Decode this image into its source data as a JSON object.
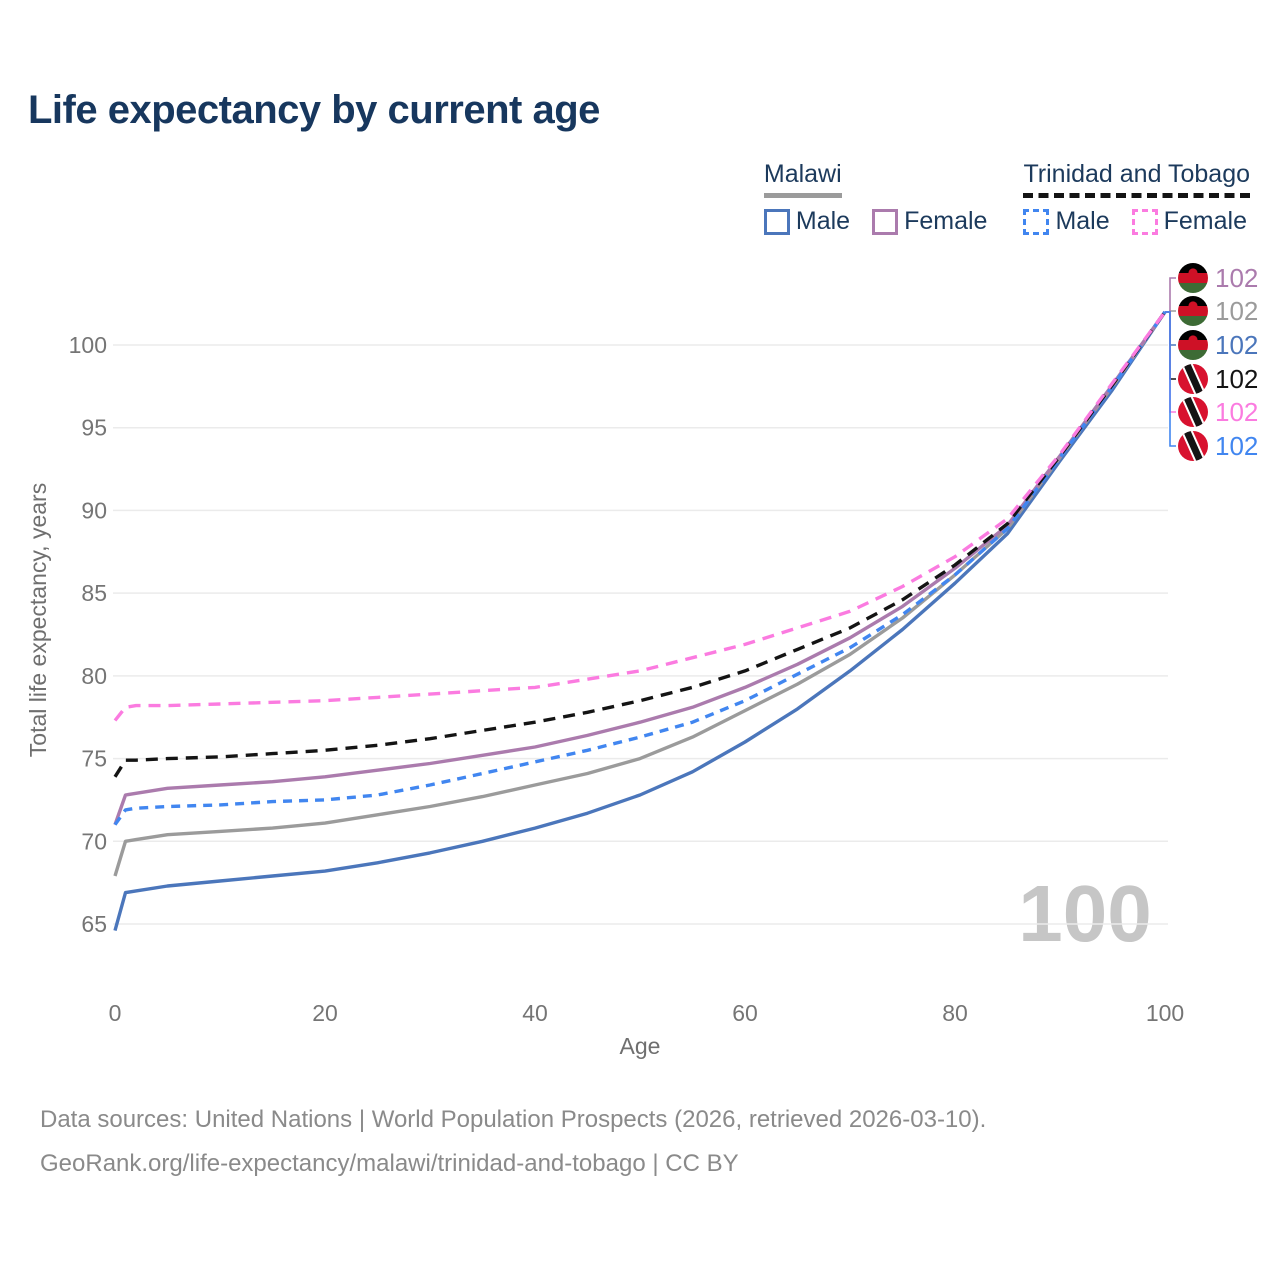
{
  "header": {
    "title": "Life expectancy by current age"
  },
  "legend": {
    "malawi": {
      "title": "Malawi",
      "male": "Male",
      "female": "Female"
    },
    "trinidad": {
      "title": "Trinidad and Tobago",
      "male": "Male",
      "female": "Female"
    }
  },
  "footer": {
    "line1": "Data sources: United Nations | World Population Prospects (2026, retrieved 2026-03-10).",
    "line2": "GeoRank.org/life-expectancy/malawi/trinidad-and-tobago | CC BY"
  },
  "chart_data": {
    "type": "line",
    "title": "Life expectancy by current age",
    "xlabel": "Age",
    "ylabel": "Total life expectancy, years",
    "x_ticks": [
      0,
      20,
      40,
      60,
      80,
      100
    ],
    "y_ticks": [
      65,
      70,
      75,
      80,
      85,
      90,
      95,
      100
    ],
    "xlim": [
      0,
      100
    ],
    "ylim": [
      63.5,
      103
    ],
    "grid": "horizontal",
    "grid_color": "#ebebeb",
    "watermark_age": "100",
    "watermark_color": "#c6c6c6",
    "text_navy": "#1c3a5c",
    "series": [
      {
        "key": "malawi-female",
        "name": "Malawi Female",
        "country": "Malawi",
        "sex": "Female",
        "color": "#ab7bad",
        "dashed": false,
        "flag": "malawi",
        "end_label": "102",
        "points": [
          [
            0,
            71.0
          ],
          [
            1,
            72.8
          ],
          [
            2,
            72.9
          ],
          [
            5,
            73.2
          ],
          [
            10,
            73.4
          ],
          [
            15,
            73.6
          ],
          [
            20,
            73.9
          ],
          [
            25,
            74.3
          ],
          [
            30,
            74.7
          ],
          [
            35,
            75.2
          ],
          [
            40,
            75.7
          ],
          [
            45,
            76.4
          ],
          [
            50,
            77.2
          ],
          [
            55,
            78.1
          ],
          [
            60,
            79.3
          ],
          [
            65,
            80.7
          ],
          [
            70,
            82.3
          ],
          [
            75,
            84.2
          ],
          [
            80,
            86.5
          ],
          [
            85,
            89.1
          ],
          [
            90,
            93.3
          ],
          [
            95,
            97.6
          ],
          [
            100,
            102
          ]
        ]
      },
      {
        "key": "malawi",
        "name": "Malawi",
        "country": "Malawi",
        "sex": "Both",
        "color": "#9b9b9b",
        "dashed": false,
        "flag": "malawi",
        "end_label": "102",
        "points": [
          [
            0,
            67.9
          ],
          [
            1,
            70.0
          ],
          [
            2,
            70.1
          ],
          [
            5,
            70.4
          ],
          [
            10,
            70.6
          ],
          [
            15,
            70.8
          ],
          [
            20,
            71.1
          ],
          [
            25,
            71.6
          ],
          [
            30,
            72.1
          ],
          [
            35,
            72.7
          ],
          [
            40,
            73.4
          ],
          [
            45,
            74.1
          ],
          [
            50,
            75.0
          ],
          [
            55,
            76.3
          ],
          [
            60,
            77.9
          ],
          [
            65,
            79.5
          ],
          [
            70,
            81.3
          ],
          [
            75,
            83.5
          ],
          [
            80,
            86.1
          ],
          [
            85,
            88.9
          ],
          [
            90,
            93.2
          ],
          [
            95,
            97.5
          ],
          [
            100,
            102
          ]
        ]
      },
      {
        "key": "malawi-male",
        "name": "Malawi Male",
        "country": "Malawi",
        "sex": "Male",
        "color": "#4b76bb",
        "dashed": false,
        "flag": "malawi",
        "end_label": "102",
        "points": [
          [
            0,
            64.6
          ],
          [
            1,
            66.9
          ],
          [
            2,
            67.0
          ],
          [
            5,
            67.3
          ],
          [
            10,
            67.6
          ],
          [
            15,
            67.9
          ],
          [
            20,
            68.2
          ],
          [
            25,
            68.7
          ],
          [
            30,
            69.3
          ],
          [
            35,
            70.0
          ],
          [
            40,
            70.8
          ],
          [
            45,
            71.7
          ],
          [
            50,
            72.8
          ],
          [
            55,
            74.2
          ],
          [
            60,
            76.0
          ],
          [
            65,
            78.0
          ],
          [
            70,
            80.3
          ],
          [
            75,
            82.8
          ],
          [
            80,
            85.6
          ],
          [
            85,
            88.6
          ],
          [
            90,
            93.0
          ],
          [
            95,
            97.3
          ],
          [
            100,
            102
          ]
        ]
      },
      {
        "key": "trinidad-and-tobago",
        "name": "Trinidad and Tobago",
        "country": "Trinidad and Tobago",
        "sex": "Both",
        "color": "#141414",
        "dashed": true,
        "flag": "trinidad-and-tobago",
        "end_label": "102",
        "points": [
          [
            0,
            73.9
          ],
          [
            1,
            74.9
          ],
          [
            2,
            74.9
          ],
          [
            5,
            75.0
          ],
          [
            10,
            75.1
          ],
          [
            15,
            75.3
          ],
          [
            20,
            75.5
          ],
          [
            25,
            75.8
          ],
          [
            30,
            76.2
          ],
          [
            35,
            76.7
          ],
          [
            40,
            77.2
          ],
          [
            45,
            77.8
          ],
          [
            50,
            78.5
          ],
          [
            55,
            79.3
          ],
          [
            60,
            80.3
          ],
          [
            65,
            81.6
          ],
          [
            70,
            82.9
          ],
          [
            75,
            84.6
          ],
          [
            80,
            86.7
          ],
          [
            85,
            89.2
          ],
          [
            90,
            93.3
          ],
          [
            95,
            97.6
          ],
          [
            100,
            102
          ]
        ]
      },
      {
        "key": "trinidad-and-tobago-female",
        "name": "Trinidad and Tobago Female",
        "country": "Trinidad and Tobago",
        "sex": "Female",
        "color": "#fb7be0",
        "dashed": true,
        "flag": "trinidad-and-tobago",
        "end_label": "102",
        "points": [
          [
            0,
            77.3
          ],
          [
            1,
            78.1
          ],
          [
            2,
            78.2
          ],
          [
            5,
            78.2
          ],
          [
            10,
            78.3
          ],
          [
            15,
            78.4
          ],
          [
            20,
            78.5
          ],
          [
            25,
            78.7
          ],
          [
            30,
            78.9
          ],
          [
            35,
            79.1
          ],
          [
            40,
            79.3
          ],
          [
            45,
            79.8
          ],
          [
            50,
            80.3
          ],
          [
            55,
            81.1
          ],
          [
            60,
            81.9
          ],
          [
            65,
            82.9
          ],
          [
            70,
            83.9
          ],
          [
            75,
            85.4
          ],
          [
            80,
            87.2
          ],
          [
            85,
            89.5
          ],
          [
            90,
            93.4
          ],
          [
            95,
            97.7
          ],
          [
            100,
            102
          ]
        ]
      },
      {
        "key": "trinidad-and-tobago-male",
        "name": "Trinidad and Tobago Male",
        "country": "Trinidad and Tobago",
        "sex": "Male",
        "color": "#4186f0",
        "dashed": true,
        "flag": "trinidad-and-tobago",
        "end_label": "102",
        "points": [
          [
            0,
            71.0
          ],
          [
            1,
            71.9
          ],
          [
            2,
            72.0
          ],
          [
            5,
            72.1
          ],
          [
            10,
            72.2
          ],
          [
            15,
            72.4
          ],
          [
            20,
            72.5
          ],
          [
            25,
            72.8
          ],
          [
            30,
            73.4
          ],
          [
            35,
            74.1
          ],
          [
            40,
            74.8
          ],
          [
            45,
            75.5
          ],
          [
            50,
            76.3
          ],
          [
            55,
            77.2
          ],
          [
            60,
            78.5
          ],
          [
            65,
            80.1
          ],
          [
            70,
            81.7
          ],
          [
            75,
            83.7
          ],
          [
            80,
            86.1
          ],
          [
            85,
            88.9
          ],
          [
            90,
            93.2
          ],
          [
            95,
            97.5
          ],
          [
            100,
            102
          ]
        ]
      }
    ]
  }
}
